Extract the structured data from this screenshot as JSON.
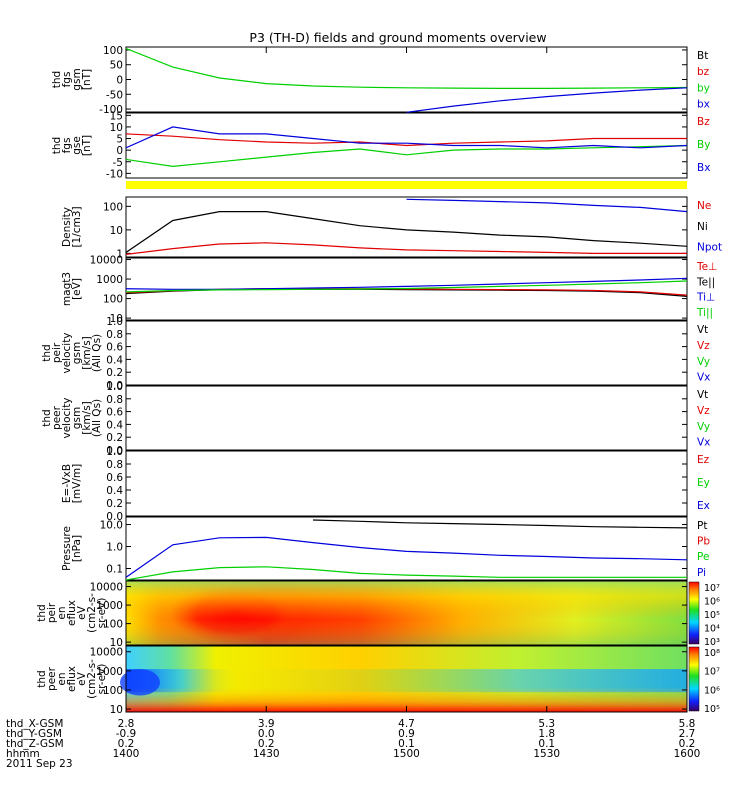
{
  "title": "P3 (TH-D) fields and ground moments overview",
  "colors": {
    "black": "#000000",
    "red": "#e00000",
    "green": "#00d000",
    "blue": "#0000dd",
    "yellow": "#ffff00"
  },
  "panels": [
    {
      "id": "fgs-gsm",
      "ylabel": [
        "thd",
        "fgs",
        "gsm",
        "[nT]"
      ],
      "ticks": [
        "100",
        "50",
        "0",
        "-50",
        "-100"
      ],
      "ylim": [
        -110,
        110
      ],
      "legend": [
        {
          "text": "Bt",
          "color": "black"
        },
        {
          "text": "bz",
          "color": "red"
        },
        {
          "text": "by",
          "color": "green"
        },
        {
          "text": "bx",
          "color": "blue"
        }
      ]
    },
    {
      "id": "fgs-gse",
      "ylabel": [
        "thd",
        "fgs",
        "gse",
        "[nT]"
      ],
      "ticks": [
        "15",
        "10",
        "5",
        "0",
        "-5",
        "-10"
      ],
      "ylim": [
        -12,
        16
      ],
      "legend": [
        {
          "text": "Bz",
          "color": "red"
        },
        {
          "text": "By",
          "color": "green"
        },
        {
          "text": "Bx",
          "color": "blue"
        }
      ]
    },
    {
      "id": "density",
      "ylabel": [
        "Density",
        "[1/cm3]"
      ],
      "ticks": [
        "100",
        "10",
        "1"
      ],
      "log": true,
      "ylim": [
        0.7,
        250
      ],
      "legend": [
        {
          "text": "Ne",
          "color": "red"
        },
        {
          "text": "Ni",
          "color": "black"
        },
        {
          "text": "Npot",
          "color": "blue"
        }
      ]
    },
    {
      "id": "temps",
      "ylabel": [
        "magt3",
        "[eV]"
      ],
      "ticks": [
        "10000",
        "1000",
        "100",
        "10"
      ],
      "log": true,
      "ylim": [
        8,
        12000
      ],
      "legend": [
        {
          "text": "Te⊥",
          "color": "red"
        },
        {
          "text": "Te||",
          "color": "black"
        },
        {
          "text": "Ti⊥",
          "color": "blue"
        },
        {
          "text": "Ti||",
          "color": "green"
        }
      ]
    },
    {
      "id": "peir-vel",
      "ylabel": [
        "thd",
        "peir",
        "velocity",
        "gsm",
        "[km/s]",
        "(All Qs)"
      ],
      "ticks": [
        "1.0",
        "0.8",
        "0.6",
        "0.4",
        "0.2",
        "0.0"
      ],
      "ylim": [
        0,
        1
      ],
      "legend": [
        {
          "text": "Vt",
          "color": "black"
        },
        {
          "text": "Vz",
          "color": "red"
        },
        {
          "text": "Vy",
          "color": "green"
        },
        {
          "text": "Vx",
          "color": "blue"
        }
      ]
    },
    {
      "id": "peer-vel",
      "ylabel": [
        "thd",
        "peer",
        "velocity",
        "gsm",
        "[km/s]",
        "(All Qs)"
      ],
      "ticks": [
        "1.0",
        "0.8",
        "0.6",
        "0.4",
        "0.2",
        "0.0"
      ],
      "ylim": [
        0,
        1
      ],
      "legend": [
        {
          "text": "Vt",
          "color": "black"
        },
        {
          "text": "Vz",
          "color": "red"
        },
        {
          "text": "Vy",
          "color": "green"
        },
        {
          "text": "Vx",
          "color": "blue"
        }
      ]
    },
    {
      "id": "efield",
      "ylabel": [
        "E=-VxB",
        "[mV/m]"
      ],
      "ticks": [
        "1.0",
        "0.8",
        "0.6",
        "0.4",
        "0.2",
        "0.0"
      ],
      "ylim": [
        0,
        1
      ],
      "legend": [
        {
          "text": "Ez",
          "color": "red"
        },
        {
          "text": "Ey",
          "color": "green"
        },
        {
          "text": "Ex",
          "color": "blue"
        }
      ]
    },
    {
      "id": "pressure",
      "ylabel": [
        "Pressure",
        "[nPa]"
      ],
      "ticks": [
        "10.0",
        "1.0",
        "0.1"
      ],
      "log": true,
      "ylim": [
        0.03,
        22
      ],
      "legend": [
        {
          "text": "Pt",
          "color": "black"
        },
        {
          "text": "Pb",
          "color": "red"
        },
        {
          "text": "Pe",
          "color": "green"
        },
        {
          "text": "Pi",
          "color": "blue"
        }
      ]
    },
    {
      "id": "peir-spec",
      "ylabel": [
        "thd",
        "peir",
        "en",
        "eflux",
        "eV",
        "(cm2-s-",
        "sr-eV)"
      ],
      "ticks": [
        "10000",
        "1000",
        "100",
        "10"
      ],
      "colorbar": [
        "10⁷",
        "10⁶",
        "10⁵",
        "10⁴",
        "10³"
      ]
    },
    {
      "id": "peer-spec",
      "ylabel": [
        "thd",
        "peer",
        "en",
        "eflux",
        "eV",
        "(cm2-s-",
        "sr-eV)"
      ],
      "ticks": [
        "10000",
        "1000",
        "100",
        "10"
      ],
      "colorbar": [
        "10⁸",
        "10⁷",
        "10⁶",
        "10⁵"
      ]
    }
  ],
  "ephemeris": {
    "labels": [
      "thd_X-GSM",
      "thd_Y-GSM",
      "thd_Z-GSM",
      "hhmm",
      "2011 Sep 23"
    ],
    "columns": [
      [
        "2.8",
        "-0.9",
        "0.2",
        "1400"
      ],
      [
        "3.9",
        "0.0",
        "0.2",
        "1430"
      ],
      [
        "4.7",
        "0.9",
        "0.1",
        "1500"
      ],
      [
        "5.3",
        "1.8",
        "0.1",
        "1530"
      ],
      [
        "5.8",
        "2.7",
        "0.2",
        "1600"
      ]
    ]
  },
  "chart_data": [
    {
      "type": "line",
      "title": "P3 (TH-D) fields and ground moments overview",
      "ylabel": "thd fgs gsm [nT]",
      "x_unit": "hhmm",
      "x": [
        "1400",
        "1410",
        "1420",
        "1430",
        "1440",
        "1450",
        "1500",
        "1510",
        "1520",
        "1530",
        "1540",
        "1550",
        "1600"
      ],
      "ylim": [
        -110,
        110
      ],
      "series": [
        {
          "name": "by",
          "values": [
            105,
            42,
            5,
            -14,
            -22,
            -26,
            -28,
            -29,
            -30,
            -30,
            -29,
            -28,
            -27
          ]
        },
        {
          "name": "bx",
          "values": [
            null,
            null,
            null,
            null,
            null,
            null,
            -111,
            -90,
            -72,
            -58,
            -46,
            -36,
            -28
          ]
        }
      ]
    },
    {
      "type": "line",
      "ylabel": "thd fgs gse [nT]",
      "x": [
        "1400",
        "1410",
        "1420",
        "1430",
        "1440",
        "1450",
        "1500",
        "1510",
        "1520",
        "1530",
        "1540",
        "1550",
        "1600"
      ],
      "ylim": [
        -12,
        16
      ],
      "series": [
        {
          "name": "Bz",
          "values": [
            7,
            6,
            4.5,
            3.5,
            3,
            3.5,
            2,
            3,
            3.5,
            4,
            5,
            5,
            5
          ]
        },
        {
          "name": "By",
          "values": [
            -4,
            -7,
            -5,
            -3,
            -1,
            0.5,
            -2,
            0,
            0.5,
            0.5,
            1,
            1.5,
            2
          ]
        },
        {
          "name": "Bx",
          "values": [
            1,
            10,
            7,
            7,
            5,
            3,
            3,
            2,
            2,
            1,
            2,
            1,
            2
          ]
        }
      ]
    },
    {
      "type": "line",
      "ylabel": "Density [1/cm3]",
      "yscale": "log",
      "x": [
        "1400",
        "1410",
        "1420",
        "1430",
        "1440",
        "1450",
        "1500",
        "1510",
        "1520",
        "1530",
        "1540",
        "1550",
        "1600"
      ],
      "ylim": [
        0.7,
        250
      ],
      "series": [
        {
          "name": "Ni",
          "values": [
            1.1,
            25,
            60,
            60,
            30,
            15,
            10,
            8,
            6,
            5,
            3.5,
            2.7,
            2
          ]
        },
        {
          "name": "Ne",
          "values": [
            0.9,
            1.6,
            2.5,
            2.8,
            2.3,
            1.7,
            1.4,
            1.3,
            1.2,
            1.1,
            1.0,
            1.0,
            1.0
          ]
        },
        {
          "name": "Npot",
          "values": [
            null,
            null,
            null,
            null,
            null,
            null,
            200,
            180,
            160,
            140,
            110,
            90,
            60
          ]
        }
      ]
    },
    {
      "type": "line",
      "ylabel": "magt3 [eV]",
      "yscale": "log",
      "x": [
        "1400",
        "1410",
        "1420",
        "1430",
        "1440",
        "1450",
        "1500",
        "1510",
        "1520",
        "1530",
        "1540",
        "1550",
        "1600"
      ],
      "ylim": [
        8,
        12000
      ],
      "series": [
        {
          "name": "Te||",
          "values": [
            180,
            240,
            290,
            300,
            300,
            300,
            290,
            280,
            270,
            260,
            240,
            200,
            130
          ]
        },
        {
          "name": "Te⊥",
          "values": [
            200,
            250,
            300,
            320,
            320,
            320,
            310,
            300,
            290,
            280,
            260,
            220,
            150
          ]
        },
        {
          "name": "Ti⊥",
          "values": [
            320,
            300,
            300,
            320,
            350,
            380,
            420,
            480,
            560,
            650,
            760,
            900,
            1100
          ]
        },
        {
          "name": "Ti||",
          "values": [
            220,
            260,
            280,
            290,
            300,
            310,
            330,
            370,
            420,
            480,
            560,
            650,
            800
          ]
        }
      ]
    },
    {
      "type": "line",
      "ylabel": "thd peir velocity gsm [km/s] (All Qs)",
      "ylim": [
        0,
        1
      ],
      "series": []
    },
    {
      "type": "line",
      "ylabel": "thd peer velocity gsm [km/s] (All Qs)",
      "ylim": [
        0,
        1
      ],
      "series": []
    },
    {
      "type": "line",
      "ylabel": "E=-VxB [mV/m]",
      "ylim": [
        0,
        1
      ],
      "series": []
    },
    {
      "type": "line",
      "ylabel": "Pressure [nPa]",
      "yscale": "log",
      "x": [
        "1400",
        "1410",
        "1420",
        "1430",
        "1440",
        "1450",
        "1500",
        "1510",
        "1520",
        "1530",
        "1540",
        "1550",
        "1600"
      ],
      "ylim": [
        0.03,
        22
      ],
      "series": [
        {
          "name": "Pt",
          "values": [
            null,
            null,
            null,
            null,
            16,
            14,
            12,
            11,
            10,
            9,
            8,
            7.5,
            7
          ]
        },
        {
          "name": "Pi",
          "values": [
            0.04,
            1.2,
            2.5,
            2.6,
            1.5,
            0.9,
            0.6,
            0.5,
            0.4,
            0.35,
            0.3,
            0.28,
            0.25
          ]
        },
        {
          "name": "Pe",
          "values": [
            0.03,
            0.07,
            0.11,
            0.12,
            0.09,
            0.06,
            0.05,
            0.045,
            0.04,
            0.04,
            0.04,
            0.04,
            0.04
          ]
        }
      ]
    },
    {
      "type": "heatmap",
      "ylabel": "thd peir en eflux eV (cm2-s-sr-eV)",
      "yscale": "log",
      "ylim": [
        7,
        20000
      ]
    },
    {
      "type": "heatmap",
      "ylabel": "thd peer en eflux eV (cm2-s-sr-eV)",
      "yscale": "log",
      "ylim": [
        7,
        20000
      ]
    }
  ]
}
